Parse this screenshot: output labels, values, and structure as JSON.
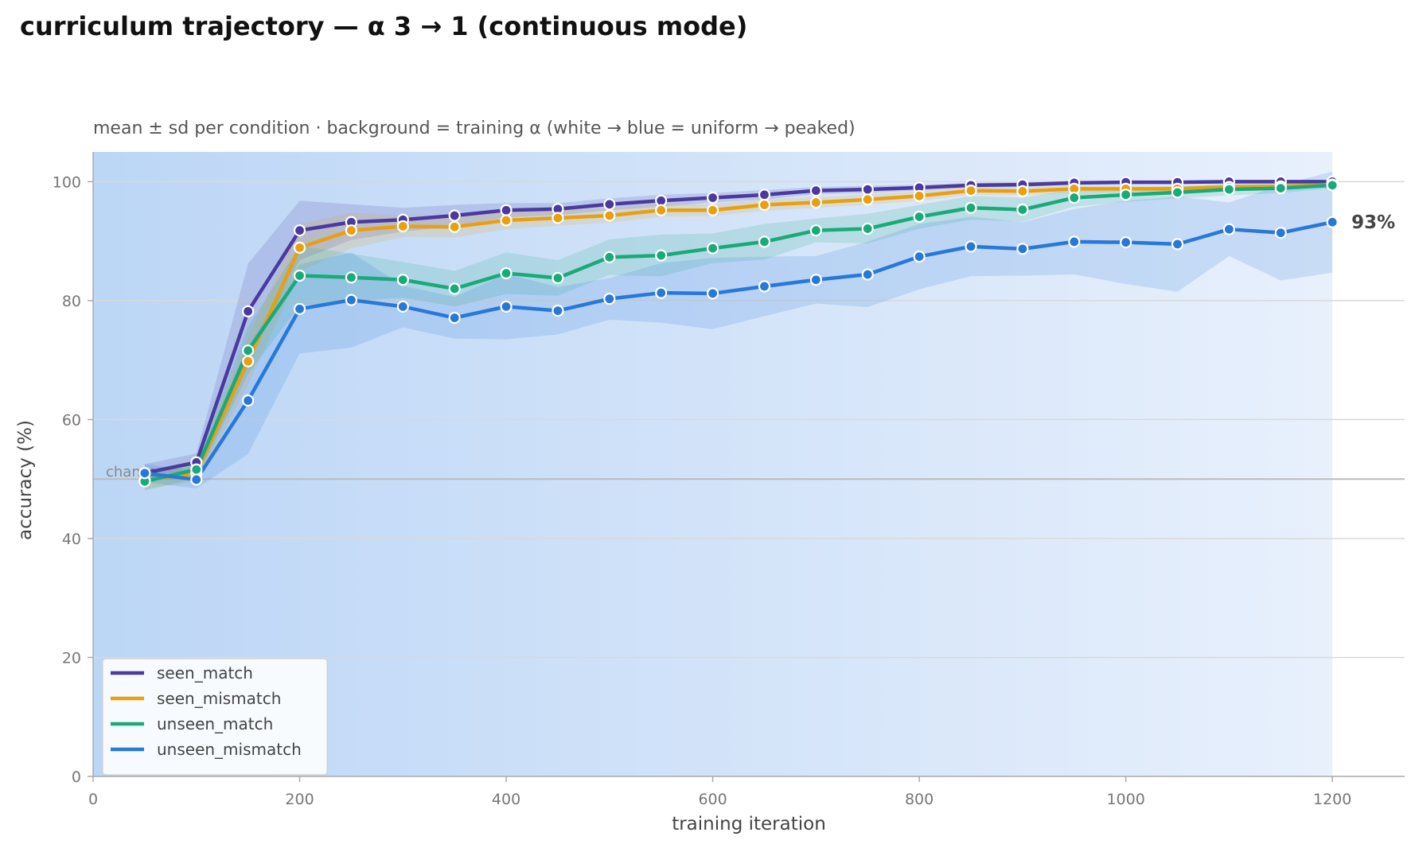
{
  "chart_data": {
    "type": "line",
    "title": "curriculum trajectory — α 3 → 1 (continuous mode)",
    "subtitle": "mean ± sd per condition · background = training α (white → blue = uniform → peaked)",
    "xlabel": "training iteration",
    "ylabel": "accuracy (%)",
    "xlim": [
      0,
      1270
    ],
    "ylim": [
      0,
      105
    ],
    "xticks": [
      0,
      200,
      400,
      600,
      800,
      1000,
      1200
    ],
    "yticks": [
      0,
      20,
      40,
      60,
      80,
      100
    ],
    "grid": "horizontal",
    "legend_position": "bottom-left",
    "background_gradient": {
      "from_color": "#bcd6f6",
      "to_color": "#e8f0fc",
      "x_start": 0,
      "x_end": 1200
    },
    "reference_line": {
      "y": 50,
      "label": "chance",
      "color": "#bbbbbb"
    },
    "end_label": {
      "series": "unseen_mismatch",
      "text": "93%"
    },
    "x": [
      50,
      100,
      150,
      200,
      250,
      300,
      350,
      400,
      450,
      500,
      550,
      600,
      650,
      700,
      750,
      800,
      850,
      900,
      950,
      1000,
      1050,
      1100,
      1150,
      1200
    ],
    "series": [
      {
        "name": "seen_match",
        "color": "#4a3aa0",
        "values": [
          51.0,
          52.8,
          78.2,
          91.8,
          93.2,
          93.6,
          94.3,
          95.2,
          95.4,
          96.2,
          96.8,
          97.3,
          97.8,
          98.5,
          98.7,
          99.0,
          99.4,
          99.5,
          99.8,
          99.9,
          99.9,
          100.0,
          100.0,
          100.0
        ],
        "sd": [
          1.5,
          1.5,
          8.0,
          5.0,
          3.0,
          2.0,
          1.8,
          1.2,
          1.0,
          1.0,
          1.0,
          0.8,
          0.8,
          0.6,
          0.6,
          0.5,
          0.4,
          0.4,
          0.3,
          0.2,
          0.2,
          0.1,
          0.1,
          0.1
        ]
      },
      {
        "name": "seen_mismatch",
        "color": "#e8a010",
        "values": [
          49.8,
          51.0,
          69.8,
          88.9,
          91.8,
          92.5,
          92.4,
          93.5,
          93.9,
          94.3,
          95.2,
          95.2,
          96.1,
          96.5,
          97.0,
          97.6,
          98.5,
          98.4,
          98.8,
          98.8,
          98.8,
          99.1,
          99.2,
          99.5
        ],
        "sd": [
          1.5,
          1.5,
          4.0,
          4.0,
          3.0,
          1.8,
          1.8,
          1.5,
          1.3,
          1.2,
          1.1,
          1.0,
          1.0,
          0.9,
          0.9,
          0.8,
          0.7,
          0.7,
          0.6,
          0.6,
          0.5,
          0.5,
          0.4,
          0.3
        ]
      },
      {
        "name": "unseen_match",
        "color": "#1aaa7a",
        "values": [
          49.6,
          51.6,
          71.6,
          84.2,
          83.9,
          83.5,
          82.0,
          84.6,
          83.8,
          87.3,
          87.6,
          88.8,
          89.9,
          91.8,
          92.1,
          94.1,
          95.6,
          95.3,
          97.3,
          97.8,
          98.2,
          98.7,
          98.9,
          99.4
        ],
        "sd": [
          1.5,
          1.5,
          4.0,
          5.0,
          4.0,
          3.0,
          3.0,
          3.5,
          3.0,
          3.0,
          3.5,
          2.5,
          3.0,
          2.0,
          2.5,
          2.0,
          2.0,
          2.0,
          1.5,
          1.2,
          1.0,
          1.0,
          0.8,
          0.5
        ]
      },
      {
        "name": "unseen_mismatch",
        "color": "#2878d8",
        "values": [
          51.0,
          49.9,
          63.2,
          78.6,
          80.1,
          79.0,
          77.1,
          79.0,
          78.3,
          80.3,
          81.3,
          81.2,
          82.4,
          83.5,
          84.4,
          87.4,
          89.1,
          88.7,
          89.9,
          89.8,
          89.5,
          92.0,
          91.4,
          93.2
        ],
        "sd": [
          1.5,
          1.5,
          9.0,
          7.5,
          8.0,
          3.5,
          3.5,
          5.5,
          4.0,
          3.5,
          5.0,
          6.0,
          5.0,
          4.0,
          5.5,
          5.5,
          5.0,
          4.5,
          5.5,
          7.0,
          8.0,
          4.5,
          8.0,
          8.5
        ]
      }
    ]
  }
}
